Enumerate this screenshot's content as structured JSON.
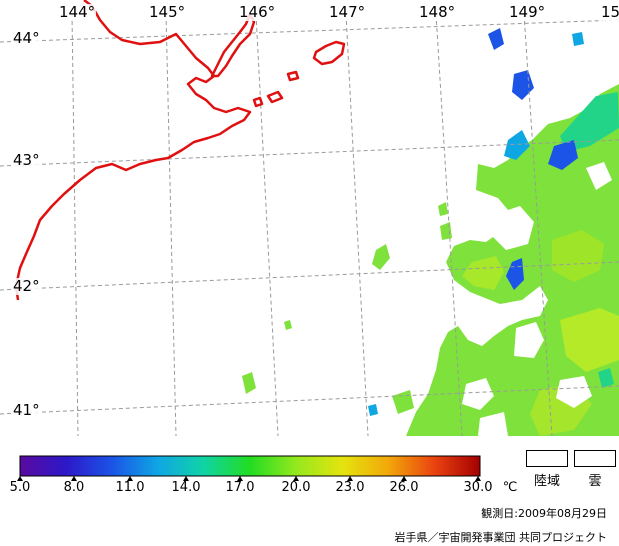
{
  "map": {
    "lon_labels": [
      "144°",
      "145°",
      "146°",
      "147°",
      "148°",
      "149°",
      "15"
    ],
    "lat_labels": [
      "44°",
      "43°",
      "42°",
      "41°"
    ],
    "coast_color": "#e01010",
    "grid_color": "#9a9a9a"
  },
  "legend": {
    "colors": [
      "#5a0aa0",
      "#2d18c8",
      "#1b54e6",
      "#0fa6e4",
      "#10d4a4",
      "#22dc22",
      "#94e81e",
      "#e4e40e",
      "#f2a80a",
      "#ea4410",
      "#a40000"
    ],
    "tick_labels": [
      "5.0",
      "8.0",
      "11.0",
      "14.0",
      "17.0",
      "20.0",
      "23.0",
      "26.0",
      "30.0"
    ],
    "unit": "℃",
    "land_label": "陸域",
    "cloud_label": "雲"
  },
  "footer": {
    "observation_date": "観測日:2009年08月29日",
    "credit": "岩手県／宇宙開発事業団 共同プロジェクト"
  }
}
